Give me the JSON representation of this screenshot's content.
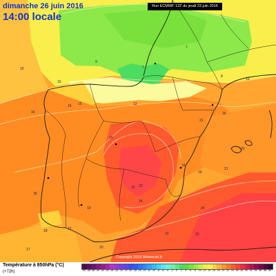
{
  "header": {
    "date": "dimanche 26 juin 2016",
    "time": "14:00 locale",
    "run": "Run ECMWF 12Z du jeudi 23 juin 2016"
  },
  "footer": {
    "copyright": "Copyright 2016 Meteociel.fr",
    "legend_title": "Température à 850hPa (°C)",
    "legend_subtitle": "(+72h)"
  },
  "colors": {
    "sea_west": "#ffa530",
    "france_yellow": "#f9ee4c",
    "green": "#8de84a",
    "cool_strip": "#fbfa9c",
    "orange": "#ff8c22",
    "hot": "#ff5a2e",
    "hottest": "#ff4646",
    "coast": "#1a1a1a",
    "isotherm": "#fff6c8"
  },
  "temperature_labels": [
    {
      "value": "16",
      "region": "atlantic-north"
    },
    {
      "value": "16",
      "region": "bay-of-biscay-west"
    },
    {
      "value": "16",
      "region": "galicia"
    },
    {
      "value": "16",
      "region": "asturias"
    },
    {
      "value": "15",
      "region": "cantabria"
    },
    {
      "value": "12",
      "region": "basque-country"
    },
    {
      "value": "7",
      "region": "aquitaine"
    },
    {
      "value": "7",
      "region": "pyrenees"
    },
    {
      "value": "9",
      "region": "landes"
    },
    {
      "value": "8",
      "region": "south-west-france"
    },
    {
      "value": "16",
      "region": "gulf-of-lion"
    },
    {
      "value": "16",
      "region": "catalonia"
    },
    {
      "value": "19",
      "region": "castile-north"
    },
    {
      "value": "21",
      "region": "aragon"
    },
    {
      "value": "19",
      "region": "valencia"
    },
    {
      "value": "20",
      "region": "balearic"
    },
    {
      "value": "18",
      "region": "portugal-north"
    },
    {
      "value": "17",
      "region": "portugal-south"
    },
    {
      "value": "17",
      "region": "atlantic-south"
    },
    {
      "value": "19",
      "region": "extremadura"
    },
    {
      "value": "23",
      "region": "la-mancha"
    },
    {
      "value": "23",
      "region": "madrid-south"
    },
    {
      "value": "24",
      "region": "murcia"
    },
    {
      "value": "22",
      "region": "andalusia"
    },
    {
      "value": "24",
      "region": "mediterranean-east"
    },
    {
      "value": "20",
      "region": "sardinia"
    },
    {
      "value": "21",
      "region": "algeria-north"
    },
    {
      "value": "22",
      "region": "algeria-coast"
    },
    {
      "value": "20",
      "region": "gibraltar"
    },
    {
      "value": "18",
      "region": "morocco-north"
    }
  ],
  "legend_scale": [
    {
      "label": "-40",
      "color": "#4b0d4b"
    },
    {
      "label": "-38",
      "color": "#5c105c"
    },
    {
      "label": "-36",
      "color": "#6e146e"
    },
    {
      "label": "-34",
      "color": "#801a80"
    },
    {
      "label": "-32",
      "color": "#932093"
    },
    {
      "label": "-30",
      "color": "#a826a8"
    },
    {
      "label": "-28",
      "color": "#b832c8"
    },
    {
      "label": "-26",
      "color": "#9a36d4"
    },
    {
      "label": "-24",
      "color": "#7c3ce0"
    },
    {
      "label": "-22",
      "color": "#5e44ea"
    },
    {
      "label": "-20",
      "color": "#3c4cf4"
    },
    {
      "label": "-18",
      "color": "#2a5cff"
    },
    {
      "label": "-16",
      "color": "#2a74ff"
    },
    {
      "label": "-14",
      "color": "#2a8cff"
    },
    {
      "label": "-12",
      "color": "#2aa6ff"
    },
    {
      "label": "-10",
      "color": "#2ac0ff"
    },
    {
      "label": "-8",
      "color": "#3cd6ff"
    },
    {
      "label": "-6",
      "color": "#5ae6f4"
    },
    {
      "label": "-4",
      "color": "#6ef0d8"
    },
    {
      "label": "-2",
      "color": "#6cf0b0"
    },
    {
      "label": "0",
      "color": "#5ce88a"
    },
    {
      "label": "2",
      "color": "#4cdc60"
    },
    {
      "label": "4",
      "color": "#58e040"
    },
    {
      "label": "6",
      "color": "#7ae43a"
    },
    {
      "label": "8",
      "color": "#a0ea3c"
    },
    {
      "label": "10",
      "color": "#c8ee40"
    },
    {
      "label": "12",
      "color": "#eef048"
    },
    {
      "label": "14",
      "color": "#fff04a"
    },
    {
      "label": "16",
      "color": "#ffd23c"
    },
    {
      "label": "18",
      "color": "#ffb432"
    },
    {
      "label": "20",
      "color": "#ff962a"
    },
    {
      "label": "22",
      "color": "#ff7a26"
    },
    {
      "label": "24",
      "color": "#ff5e2a"
    },
    {
      "label": "26",
      "color": "#ff4236"
    },
    {
      "label": "28",
      "color": "#f02a3c"
    },
    {
      "label": "30",
      "color": "#d81c44"
    },
    {
      "label": "32",
      "color": "#b8124c"
    },
    {
      "label": "34",
      "color": "#960a4e"
    },
    {
      "label": "36",
      "color": "#76064a"
    },
    {
      "label": "38",
      "color": "#560440"
    },
    {
      "label": "40",
      "color": "#3c0234"
    }
  ]
}
